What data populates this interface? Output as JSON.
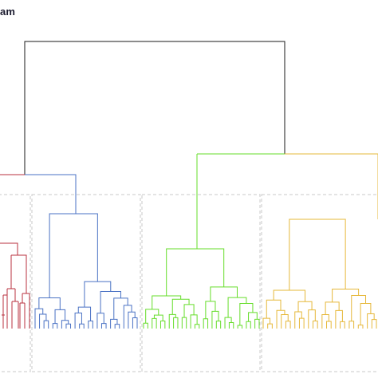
{
  "header": {
    "title_fragment": "am"
  },
  "colors": {
    "root": "#1a1a1a",
    "red_cluster": "#b8323f",
    "blue_cluster": "#4a72c4",
    "green_cluster": "#66dd2a",
    "gold_cluster": "#e6b83a",
    "cluster_box": "#c8c8c8"
  },
  "clusters": [
    {
      "name": "red-cluster",
      "color_key": "red_cluster",
      "leaves": 8
    },
    {
      "name": "blue-cluster",
      "color_key": "blue_cluster",
      "leaves": 24
    },
    {
      "name": "green-cluster",
      "color_key": "green_cluster",
      "leaves": 28
    },
    {
      "name": "gold-cluster",
      "color_key": "gold_cluster",
      "leaves": 26
    }
  ]
}
